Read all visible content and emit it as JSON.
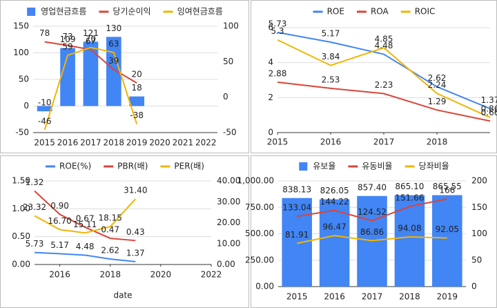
{
  "chart_data": [
    {
      "type": "combo",
      "categories": [
        "2015",
        "2016",
        "2017",
        "2018",
        "2019",
        "2020",
        "2021",
        "2022"
      ],
      "series": [
        {
          "name": "영업현금흐름",
          "type": "bar",
          "color": "#4285f4",
          "values": [
            -10,
            109,
            121,
            130,
            18,
            null,
            null,
            null
          ]
        },
        {
          "name": "당기순이익",
          "type": "line",
          "axis": "y2",
          "color": "#db4437",
          "values": [
            78,
            73,
            67,
            39,
            20,
            null,
            null,
            null
          ]
        },
        {
          "name": "잉여현금흐름",
          "type": "line",
          "axis": "y2",
          "color": "#f4b400",
          "values": [
            -46,
            59,
            70,
            63,
            -38,
            null,
            null,
            null
          ]
        }
      ],
      "ylim": [
        -50,
        150
      ],
      "yticks": [
        -50,
        0,
        50,
        100,
        150
      ],
      "y2lim": [
        -50,
        100
      ],
      "y2ticks": [
        -50,
        0,
        50,
        100
      ],
      "grid": true,
      "legend": "top"
    },
    {
      "type": "line",
      "x": [
        2015,
        2016,
        2017,
        2018,
        2019
      ],
      "series": [
        {
          "name": "ROE",
          "color": "#4285f4",
          "values": [
            5.73,
            5.17,
            4.48,
            2.62,
            1.37
          ]
        },
        {
          "name": "ROA",
          "color": "#db4437",
          "values": [
            2.88,
            2.53,
            2.23,
            1.29,
            0.66
          ]
        },
        {
          "name": "ROIC",
          "color": "#f4b400",
          "values": [
            5.3,
            3.84,
            4.85,
            2.24,
            0.86
          ]
        }
      ],
      "xlim": [
        2015,
        2019
      ],
      "xticks": [
        2015,
        2016,
        2017,
        2018
      ],
      "ylim": [
        0,
        6
      ],
      "yticks": [
        0,
        2,
        4,
        6
      ],
      "grid": true,
      "legend": "top"
    },
    {
      "type": "line",
      "x": [
        2015,
        2016,
        2017,
        2018,
        2019
      ],
      "x_label": "date",
      "series": [
        {
          "name": "ROE(%)",
          "axis": "y2",
          "color": "#4285f4",
          "values": [
            5.73,
            5.17,
            4.48,
            2.62,
            1.37
          ]
        },
        {
          "name": "PBR(배)",
          "color": "#db4437",
          "values": [
            1.32,
            0.9,
            0.67,
            0.47,
            0.43
          ],
          "value_labels": [
            "1.32",
            "0.90",
            "0.67",
            "0.47",
            "0.43"
          ]
        },
        {
          "name": "PER(배)",
          "axis": "y2",
          "color": "#f4b400",
          "values": [
            23.32,
            16.7,
            15.11,
            18.15,
            31.4
          ],
          "value_labels": [
            "23.32",
            "16.70",
            "15.11",
            "18.15",
            "31.40"
          ]
        }
      ],
      "xlim": [
        2015,
        2022
      ],
      "xticks": [
        2016,
        2018,
        2020,
        2022
      ],
      "ylim": [
        0,
        1.5
      ],
      "yticks": [
        {
          "value": 0,
          "label": "0.00"
        },
        {
          "value": 0.5,
          "label": "0.50"
        },
        {
          "value": 1,
          "label": "1.00"
        },
        {
          "value": 1.5,
          "label": "1.50"
        }
      ],
      "y2lim": [
        0,
        40
      ],
      "y2ticks": [
        {
          "value": 0,
          "label": "0.00"
        },
        {
          "value": 10,
          "label": "10.00"
        },
        {
          "value": 20,
          "label": "20.00"
        },
        {
          "value": 30,
          "label": "30.00"
        },
        {
          "value": 40,
          "label": "40.00"
        }
      ],
      "grid": true,
      "legend": "top"
    },
    {
      "type": "combo",
      "categories": [
        "2015",
        "2016",
        "2017",
        "2018",
        "2019"
      ],
      "series": [
        {
          "name": "유보율",
          "type": "bar",
          "color": "#4285f4",
          "values": [
            838.13,
            826.05,
            857.4,
            865.1,
            865.55
          ],
          "value_labels": [
            "838.13",
            "826.05",
            "857.40",
            "865.10",
            "865.55"
          ]
        },
        {
          "name": "유동비율",
          "type": "line",
          "axis": "y2",
          "color": "#db4437",
          "values": [
            133.04,
            144.22,
            124.52,
            151.66,
            166
          ]
        },
        {
          "name": "당좌비율",
          "type": "line",
          "axis": "y2",
          "color": "#f4b400",
          "values": [
            81.91,
            96.47,
            86.86,
            94.08,
            92.05
          ]
        }
      ],
      "ylim": [
        0,
        1000
      ],
      "yticks": [
        {
          "value": 0,
          "label": "0.00"
        },
        {
          "value": 250,
          "label": "250.00"
        },
        {
          "value": 500,
          "label": "500.00"
        },
        {
          "value": 750,
          "label": "750.00"
        },
        {
          "value": 1000,
          "label": "1,000.00"
        }
      ],
      "y2lim": [
        0,
        200
      ],
      "y2ticks": [
        0,
        50,
        100,
        150,
        200
      ],
      "grid": true,
      "legend": "top"
    }
  ]
}
